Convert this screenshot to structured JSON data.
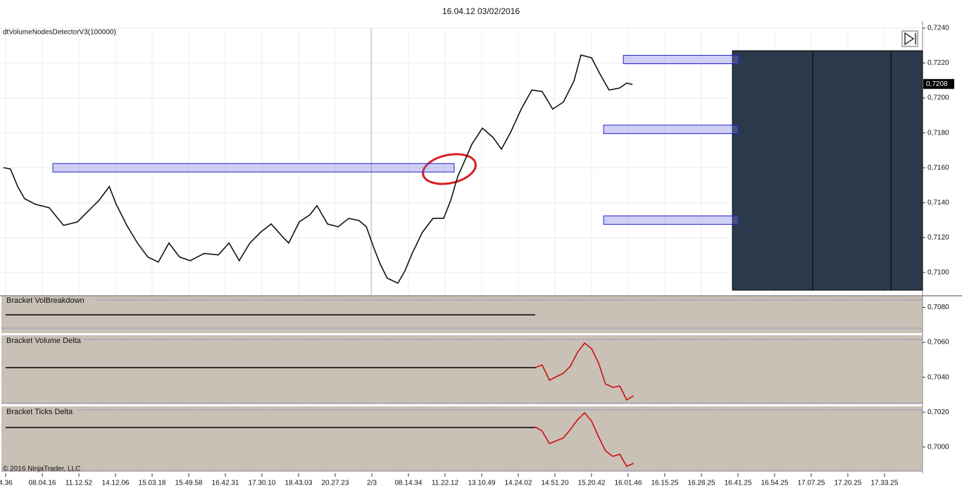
{
  "chart_data": {
    "type": "line",
    "title": "16.04.12 03/02/2016",
    "indicator": "dtVolumeNodesDetectorV3(100000)",
    "copyright": "© 2016 NinjaTrader, LLC",
    "panels": [
      "Bracket VolBreakdown",
      "Bracket Volume Delta",
      "Bracket Ticks Delta"
    ],
    "last_price": {
      "value": 0.7208,
      "label": "0,7208"
    },
    "ylim": [
      0.6985,
      0.7244
    ],
    "yticks": [
      {
        "value": 0.724,
        "label": "0,7240"
      },
      {
        "value": 0.722,
        "label": "0,7220"
      },
      {
        "value": 0.72,
        "label": "0,7200"
      },
      {
        "value": 0.718,
        "label": "0,7180"
      },
      {
        "value": 0.716,
        "label": "0,7160"
      },
      {
        "value": 0.714,
        "label": "0,7140"
      },
      {
        "value": 0.712,
        "label": "0,7120"
      },
      {
        "value": 0.71,
        "label": "0,7100"
      },
      {
        "value": 0.708,
        "label": "0,7080"
      },
      {
        "value": 0.706,
        "label": "0,7060"
      },
      {
        "value": 0.704,
        "label": "0,7040"
      },
      {
        "value": 0.702,
        "label": "0,7020"
      },
      {
        "value": 0.7,
        "label": "0,7000"
      }
    ],
    "xlim": [
      -0.154,
      25.04
    ],
    "xticks": [
      {
        "value": 0,
        "label": "4.36"
      },
      {
        "value": 1,
        "label": "08.04.16"
      },
      {
        "value": 2,
        "label": "11.12.52"
      },
      {
        "value": 3,
        "label": "14.12.06"
      },
      {
        "value": 4,
        "label": "15.03.18"
      },
      {
        "value": 5,
        "label": "15.49.58"
      },
      {
        "value": 6,
        "label": "16.42.31"
      },
      {
        "value": 7,
        "label": "17.30.10"
      },
      {
        "value": 8,
        "label": "18.43.03"
      },
      {
        "value": 9,
        "label": "20.27.23"
      },
      {
        "value": 10,
        "label": "2/3"
      },
      {
        "value": 11,
        "label": "08.14.34"
      },
      {
        "value": 12,
        "label": "11.22.12"
      },
      {
        "value": 13,
        "label": "13.10.49"
      },
      {
        "value": 14,
        "label": "14.24.02"
      },
      {
        "value": 15,
        "label": "14.51.20"
      },
      {
        "value": 16,
        "label": "15.20.42"
      },
      {
        "value": 17,
        "label": "16.01.46"
      },
      {
        "value": 18,
        "label": "16.15.25"
      },
      {
        "value": 19,
        "label": "16.28.25"
      },
      {
        "value": 20,
        "label": "16.41.25"
      },
      {
        "value": 21,
        "label": "16.54.25"
      },
      {
        "value": 22,
        "label": "17.07.25"
      },
      {
        "value": 23,
        "label": "17.20.25"
      },
      {
        "value": 24,
        "label": "17.33.25"
      }
    ],
    "series": [
      {
        "color": "#111111",
        "x": [
          -0.06,
          0.13,
          0.33,
          0.52,
          0.81,
          1.19,
          1.58,
          1.96,
          2.25,
          2.54,
          2.83,
          3.02,
          3.31,
          3.6,
          3.88,
          4.17,
          4.46,
          4.75,
          5.04,
          5.42,
          5.81,
          6.1,
          6.38,
          6.67,
          6.96,
          7.25,
          7.54,
          7.73,
          8.02,
          8.31,
          8.5,
          8.79,
          9.08,
          9.37,
          9.65,
          9.85,
          10.04,
          10.23,
          10.42,
          10.71,
          10.9,
          11.1,
          11.38,
          11.67,
          11.96,
          12.15,
          12.35,
          12.54,
          12.73,
          13.02,
          13.31,
          13.54,
          13.79,
          14.08,
          14.37,
          14.65,
          14.94,
          15.23,
          15.52,
          15.71,
          16,
          16.23,
          16.48,
          16.77,
          16.96,
          17.12
        ],
        "values": [
          0.71601,
          0.71593,
          0.71492,
          0.71423,
          0.71391,
          0.71371,
          0.7127,
          0.7129,
          0.71351,
          0.71411,
          0.71492,
          0.71391,
          0.7127,
          0.71169,
          0.71089,
          0.7106,
          0.71169,
          0.71089,
          0.71068,
          0.71109,
          0.71101,
          0.71169,
          0.71068,
          0.71169,
          0.7123,
          0.71278,
          0.7121,
          0.71169,
          0.7129,
          0.71331,
          0.71383,
          0.71278,
          0.71262,
          0.7131,
          0.71298,
          0.71262,
          0.71149,
          0.71048,
          0.70968,
          0.70939,
          0.71008,
          0.71109,
          0.7123,
          0.7131,
          0.7131,
          0.71411,
          0.71553,
          0.71641,
          0.71734,
          0.71827,
          0.71774,
          0.71706,
          0.71803,
          0.71936,
          0.72045,
          0.72037,
          0.71936,
          0.71976,
          0.72097,
          0.72246,
          0.7223,
          0.72137,
          0.72045,
          0.72057,
          0.72085,
          0.72077
        ]
      },
      {
        "color": "#cc1111",
        "x": [
          14.46,
          14.65,
          14.85,
          15.04,
          15.23,
          15.42,
          15.62,
          15.81,
          16,
          16.19,
          16.38,
          16.58,
          16.77,
          16.96,
          17.15
        ],
        "values": [
          0.70455,
          0.70471,
          0.70383,
          0.70403,
          0.70423,
          0.70463,
          0.70544,
          0.70596,
          0.70564,
          0.70483,
          0.70362,
          0.70342,
          0.7035,
          0.7027,
          0.70294
        ]
      },
      {
        "color": "#cc1111",
        "x": [
          14.46,
          14.65,
          14.85,
          15.04,
          15.23,
          15.42,
          15.62,
          15.81,
          16,
          16.19,
          16.38,
          16.58,
          16.77,
          16.96,
          17.15
        ],
        "values": [
          0.70116,
          0.70092,
          0.7002,
          0.70036,
          0.70052,
          0.701,
          0.70157,
          0.70197,
          0.70149,
          0.7006,
          0.69979,
          0.69947,
          0.69959,
          0.6989,
          0.69907
        ]
      }
    ],
    "zones": [
      {
        "price": 0.716,
        "x": [
          1.29,
          12.25
        ]
      },
      {
        "price": 0.7222,
        "x": [
          16.87,
          20.02
        ]
      },
      {
        "price": 0.7182,
        "x": [
          16.33,
          20.0
        ]
      },
      {
        "price": 0.713,
        "x": [
          16.33,
          20.0
        ]
      }
    ]
  }
}
